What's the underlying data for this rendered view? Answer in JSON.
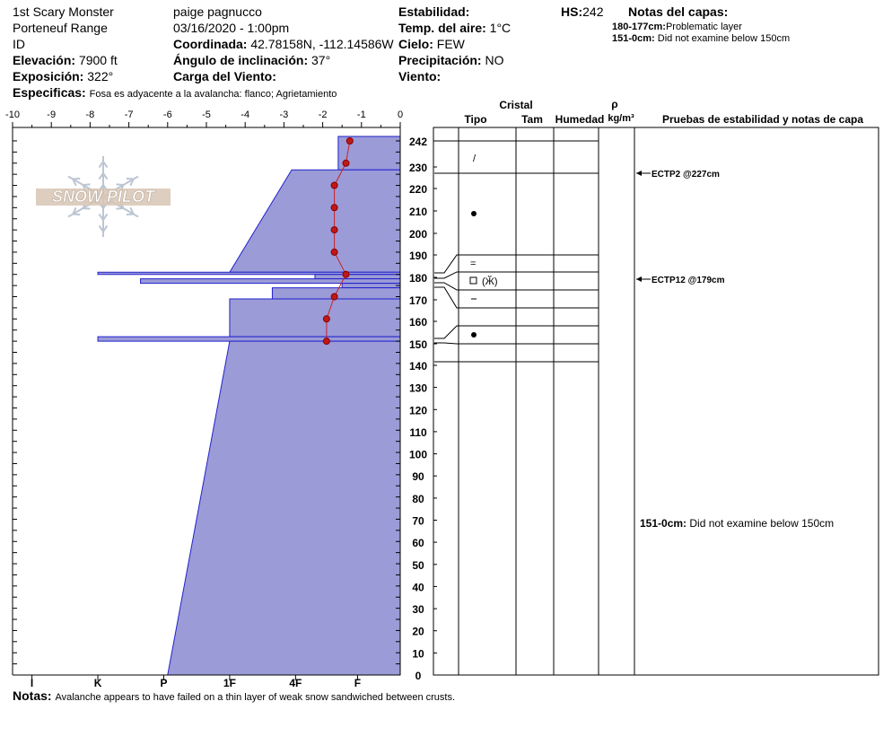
{
  "header": {
    "location": "1st Scary Monster",
    "range": "Porteneuf Range",
    "state": "ID",
    "elevation_label": "Elevación:",
    "elevation_value": "7900 ft",
    "aspect_label": "Exposición:",
    "aspect_value": "322°",
    "specifics_label": "Especificas:",
    "specifics_value": "Fosa es adyacente a la avalancha: flanco;  Agrietamiento",
    "observer": "paige pagnucco",
    "datetime": "03/16/2020 - 1:00pm",
    "coord_label": "Coordinada:",
    "coord_value": "42.78158N, -112.14586W",
    "slope_label": "Ángulo de inclinación:",
    "slope_value": "37°",
    "wind_load_label": "Carga del Viento:",
    "stability_label": "Estabilidad:",
    "air_temp_label": "Temp. del aire:",
    "air_temp_value": "1°C",
    "sky_label": "Cielo:",
    "sky_value": "FEW",
    "precip_label": "Precipitación:",
    "precip_value": "NO",
    "wind_label": "Viento:",
    "hs_label": "HS:",
    "hs_value": "242",
    "layer_notes_title": "Notas del capas:",
    "layer_notes": [
      {
        "range": "180-177cm:",
        "text": "Problematic layer"
      },
      {
        "range": "151-0cm:",
        "text": "Did not examine below 150cm"
      }
    ]
  },
  "footer": {
    "notes_label": "Notas:",
    "notes_text": "Avalanche appears to have failed on a thin layer of weak snow sandwiched between crusts."
  },
  "logo": {
    "text": "SNOW PILOT"
  },
  "columns": {
    "cristal": "Cristal",
    "tipo": "Tipo",
    "tam": "Tam",
    "humedad": "Humedad",
    "rho": "ρ",
    "density_unit": "kg/m³",
    "tests": "Pruebas de estabilidad y notas de capa"
  },
  "chart_data": {
    "type": "snow_profile",
    "temp_axis": {
      "ticks": [
        -10,
        -9,
        -8,
        -7,
        -6,
        -5,
        -4,
        -3,
        -2,
        -1,
        0
      ],
      "range": [
        -10,
        0
      ]
    },
    "hardness_axis": {
      "labels": [
        "I",
        "K",
        "P",
        "1F",
        "4F",
        "F"
      ],
      "range": [
        -9.5,
        0
      ]
    },
    "depth_labels": [
      242,
      230,
      220,
      210,
      200,
      190,
      180,
      170,
      160,
      150,
      140,
      130,
      120,
      110,
      100,
      90,
      80,
      70,
      60,
      50,
      40,
      30,
      20,
      10,
      0
    ],
    "hardness_profile": [
      {
        "top": 242,
        "bottom": 227,
        "hardness": -1.6
      },
      {
        "top": 227,
        "bottom": 181,
        "hardness": -2.8
      },
      {
        "top": 181,
        "bottom": 180,
        "hardness": -7.8
      },
      {
        "top": 180,
        "bottom": 178,
        "hardness": -2.2
      },
      {
        "top": 178,
        "bottom": 176,
        "hardness": -6.7
      },
      {
        "top": 176,
        "bottom": 174,
        "hardness": -1.5
      },
      {
        "top": 174,
        "bottom": 169,
        "hardness": -3.3
      },
      {
        "top": 169,
        "bottom": 152,
        "hardness": -4.4
      },
      {
        "top": 152,
        "bottom": 150,
        "hardness": -7.8
      },
      {
        "top": 150,
        "bottom": 0,
        "hardness": -4.4
      }
    ],
    "temperature_profile": [
      {
        "depth": 240,
        "temp": -1.3
      },
      {
        "depth": 230,
        "temp": -1.4
      },
      {
        "depth": 220,
        "temp": -1.7
      },
      {
        "depth": 210,
        "temp": -1.7
      },
      {
        "depth": 200,
        "temp": -1.7
      },
      {
        "depth": 190,
        "temp": -1.7
      },
      {
        "depth": 180,
        "temp": -1.4
      },
      {
        "depth": 170,
        "temp": -1.7
      },
      {
        "depth": 160,
        "temp": -1.9
      },
      {
        "depth": 150,
        "temp": -1.9
      }
    ],
    "layer_boundaries": [
      242,
      227,
      190,
      183,
      177,
      169,
      162,
      154,
      147,
      139
    ],
    "crystals": [
      {
        "depth": 233,
        "symbol": "precip-particles"
      },
      {
        "depth": 209,
        "symbol": "rounded-grain"
      },
      {
        "depth": 186,
        "symbol": "melt-freeze"
      },
      {
        "depth": 180,
        "symbol": "facet-surface-hoar"
      },
      {
        "depth": 172,
        "symbol": "crust"
      },
      {
        "depth": 155,
        "symbol": "rounded-grain"
      }
    ],
    "stability_tests": [
      {
        "depth": 227,
        "label": "ECTP2 @227cm"
      },
      {
        "depth": 179,
        "label": "ECTP12 @179cm"
      }
    ],
    "bottom_note": {
      "range": "151-0cm:",
      "text": "Did not examine below 150cm"
    }
  }
}
